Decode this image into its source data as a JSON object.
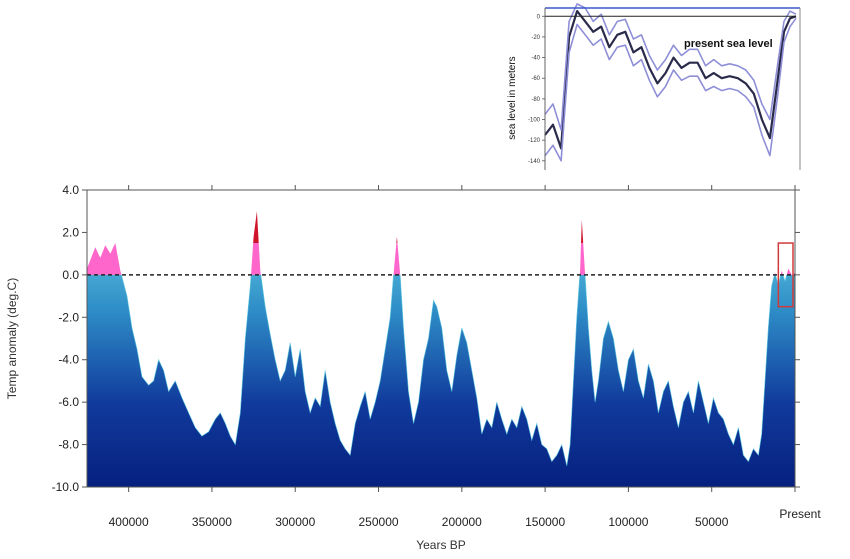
{
  "chart_data": [
    {
      "type": "area",
      "xlabel": "Years BP",
      "ylabel": "Temp anomaly (deg.C)",
      "xlim": [
        425000,
        0
      ],
      "ylim": [
        -10,
        4
      ],
      "x_tick_values": [
        400000,
        350000,
        300000,
        250000,
        200000,
        150000,
        100000,
        50000,
        0
      ],
      "x_tick_labels": [
        "400000",
        "350000",
        "300000",
        "250000",
        "200000",
        "150000",
        "100000",
        "50000",
        "Present"
      ],
      "y_tick_values": [
        4,
        2,
        0,
        -2,
        -4,
        -6,
        -8,
        -10
      ],
      "y_tick_labels": [
        "4.0",
        "2.0",
        "0.0",
        "-2.0",
        "-4.0",
        "-6.0",
        "-8.0",
        "-10.0"
      ],
      "reference_line": {
        "y": 0,
        "style": "dashed"
      },
      "highlight_box": {
        "x_range": [
          10000,
          0
        ],
        "y_range": [
          -1.5,
          1.5
        ],
        "color": "#d23a3a"
      },
      "colors": {
        "below_zero_top": "#6fd6e6",
        "below_zero_bottom": "#08218a",
        "above_zero": "#ff66cc",
        "peak": "#d0142c"
      },
      "series": [
        {
          "x": [
            425000,
            420000,
            417000,
            414000,
            411000,
            408000,
            405000,
            401000,
            398000,
            395000,
            392000,
            388000,
            385000,
            382000,
            379000,
            376000,
            372000,
            368000,
            364000,
            360000,
            356000,
            352000,
            348000,
            345000,
            342000,
            339000,
            336000,
            333000,
            330000,
            327000,
            325000,
            323000,
            321000,
            318000,
            315000,
            312000,
            309000,
            306000,
            303000,
            300000,
            297000,
            294000,
            291000,
            288000,
            285000,
            282000,
            279000,
            276000,
            273000,
            270000,
            267000,
            264000,
            261000,
            258000,
            255000,
            252000,
            249000,
            246000,
            243000,
            241000,
            239000,
            237000,
            235000,
            232000,
            229000,
            226000,
            223000,
            220000,
            217000,
            215000,
            212000,
            209000,
            206000,
            203000,
            200000,
            197000,
            194000,
            191000,
            188000,
            185000,
            182000,
            179000,
            176000,
            173000,
            170000,
            167000,
            164000,
            161000,
            158000,
            155000,
            152000,
            149000,
            146000,
            143000,
            140000,
            137000,
            135000,
            133000,
            131000,
            129000,
            128000,
            126000,
            124000,
            122000,
            120000,
            118000,
            115000,
            112000,
            109000,
            106000,
            103000,
            100000,
            97000,
            94000,
            91000,
            88000,
            85000,
            82000,
            79000,
            76000,
            73000,
            70000,
            67000,
            64000,
            61000,
            58000,
            55000,
            52000,
            49000,
            46000,
            43000,
            40000,
            37000,
            34000,
            31000,
            28000,
            25000,
            22000,
            20000,
            18000,
            16000,
            14000,
            12000,
            10000,
            8000,
            6000,
            4000,
            2000,
            0
          ],
          "y": [
            0.3,
            1.3,
            0.8,
            1.4,
            1.0,
            1.5,
            0.2,
            -1.0,
            -2.5,
            -3.5,
            -4.8,
            -5.2,
            -5.0,
            -4.0,
            -4.5,
            -5.5,
            -5.0,
            -5.8,
            -6.5,
            -7.2,
            -7.6,
            -7.4,
            -6.8,
            -6.5,
            -7.0,
            -7.6,
            -8.0,
            -6.5,
            -3.0,
            -0.5,
            1.8,
            3.0,
            0.2,
            -1.5,
            -2.8,
            -4.0,
            -5.0,
            -4.5,
            -3.2,
            -4.8,
            -3.5,
            -5.5,
            -6.5,
            -5.8,
            -6.2,
            -4.5,
            -6.0,
            -7.0,
            -7.8,
            -8.2,
            -8.5,
            -7.0,
            -6.2,
            -5.5,
            -6.8,
            -6.0,
            -5.0,
            -3.5,
            -2.0,
            0.0,
            1.8,
            0.0,
            -2.5,
            -5.5,
            -7.0,
            -6.0,
            -4.0,
            -3.0,
            -1.2,
            -1.5,
            -2.5,
            -4.5,
            -5.5,
            -3.8,
            -2.5,
            -3.2,
            -4.5,
            -5.8,
            -7.5,
            -6.8,
            -7.2,
            -6.0,
            -6.8,
            -7.5,
            -6.8,
            -7.2,
            -6.2,
            -6.8,
            -7.8,
            -7.0,
            -8.0,
            -8.2,
            -8.8,
            -8.5,
            -8.0,
            -9.0,
            -8.0,
            -5.0,
            -2.0,
            0.2,
            2.6,
            0.0,
            -2.5,
            -4.5,
            -6.0,
            -5.0,
            -3.0,
            -2.2,
            -3.0,
            -4.5,
            -5.5,
            -4.0,
            -3.5,
            -5.0,
            -5.8,
            -4.2,
            -5.0,
            -6.5,
            -5.5,
            -5.0,
            -6.2,
            -7.2,
            -6.0,
            -5.5,
            -6.5,
            -5.0,
            -6.0,
            -7.0,
            -5.8,
            -6.5,
            -6.8,
            -7.5,
            -8.0,
            -7.2,
            -8.5,
            -8.8,
            -8.2,
            -8.5,
            -7.5,
            -5.0,
            -2.5,
            -0.5,
            0.1,
            -0.5,
            0.2,
            -0.3,
            0.3,
            0.0,
            0.1
          ]
        }
      ]
    },
    {
      "type": "line",
      "title": "present sea level",
      "ylabel": "sea level in meters",
      "y_tick_values": [
        0,
        -20,
        -40,
        -60,
        -80,
        -100,
        -120,
        -140
      ],
      "y_tick_labels": [
        "0",
        "-20",
        "-40",
        "-60",
        "-80",
        "-100",
        "-120",
        "-140"
      ],
      "ylim": [
        -145,
        8
      ],
      "xlim": [
        125000,
        0
      ],
      "reference_line": {
        "y": 0
      },
      "colors": {
        "mean": "#2a2a4a",
        "bounds": "#8f8fd8",
        "frame": "#3a5ac8"
      },
      "series": [
        {
          "x": [
            125000,
            121000,
            117000,
            113000,
            109000,
            105000,
            101000,
            97000,
            93000,
            89000,
            85000,
            81000,
            77000,
            73000,
            69000,
            65000,
            61000,
            57000,
            53000,
            49000,
            45000,
            41000,
            37000,
            33000,
            29000,
            25000,
            21000,
            17000,
            13000,
            9000,
            6000,
            3000,
            0
          ],
          "y": [
            -115,
            -105,
            -128,
            -20,
            5,
            -5,
            -15,
            -10,
            -30,
            -18,
            -15,
            -35,
            -30,
            -50,
            -65,
            -55,
            -40,
            -50,
            -45,
            -45,
            -60,
            -55,
            -60,
            -58,
            -60,
            -65,
            -75,
            -100,
            -118,
            -60,
            -15,
            -2,
            0
          ]
        },
        {
          "x": [
            125000,
            121000,
            117000,
            113000,
            109000,
            105000,
            101000,
            97000,
            93000,
            89000,
            85000,
            81000,
            77000,
            73000,
            69000,
            65000,
            61000,
            57000,
            53000,
            49000,
            45000,
            41000,
            37000,
            33000,
            29000,
            25000,
            21000,
            17000,
            13000,
            9000,
            6000,
            3000,
            0
          ],
          "y": [
            -95,
            -85,
            -110,
            -5,
            12,
            8,
            -5,
            2,
            -18,
            -5,
            -3,
            -22,
            -18,
            -38,
            -52,
            -42,
            -28,
            -38,
            -32,
            -32,
            -48,
            -42,
            -48,
            -46,
            -48,
            -52,
            -62,
            -85,
            -100,
            -45,
            -5,
            5,
            2
          ]
        },
        {
          "x": [
            125000,
            121000,
            117000,
            113000,
            109000,
            105000,
            101000,
            97000,
            93000,
            89000,
            85000,
            81000,
            77000,
            73000,
            69000,
            65000,
            61000,
            57000,
            53000,
            49000,
            45000,
            41000,
            37000,
            33000,
            29000,
            25000,
            21000,
            17000,
            13000,
            9000,
            6000,
            3000,
            0
          ],
          "y": [
            -135,
            -125,
            -140,
            -35,
            -8,
            -18,
            -28,
            -22,
            -42,
            -30,
            -28,
            -48,
            -42,
            -62,
            -78,
            -68,
            -52,
            -62,
            -58,
            -58,
            -72,
            -68,
            -72,
            -70,
            -72,
            -78,
            -88,
            -115,
            -135,
            -75,
            -25,
            -10,
            -2
          ]
        }
      ]
    }
  ]
}
